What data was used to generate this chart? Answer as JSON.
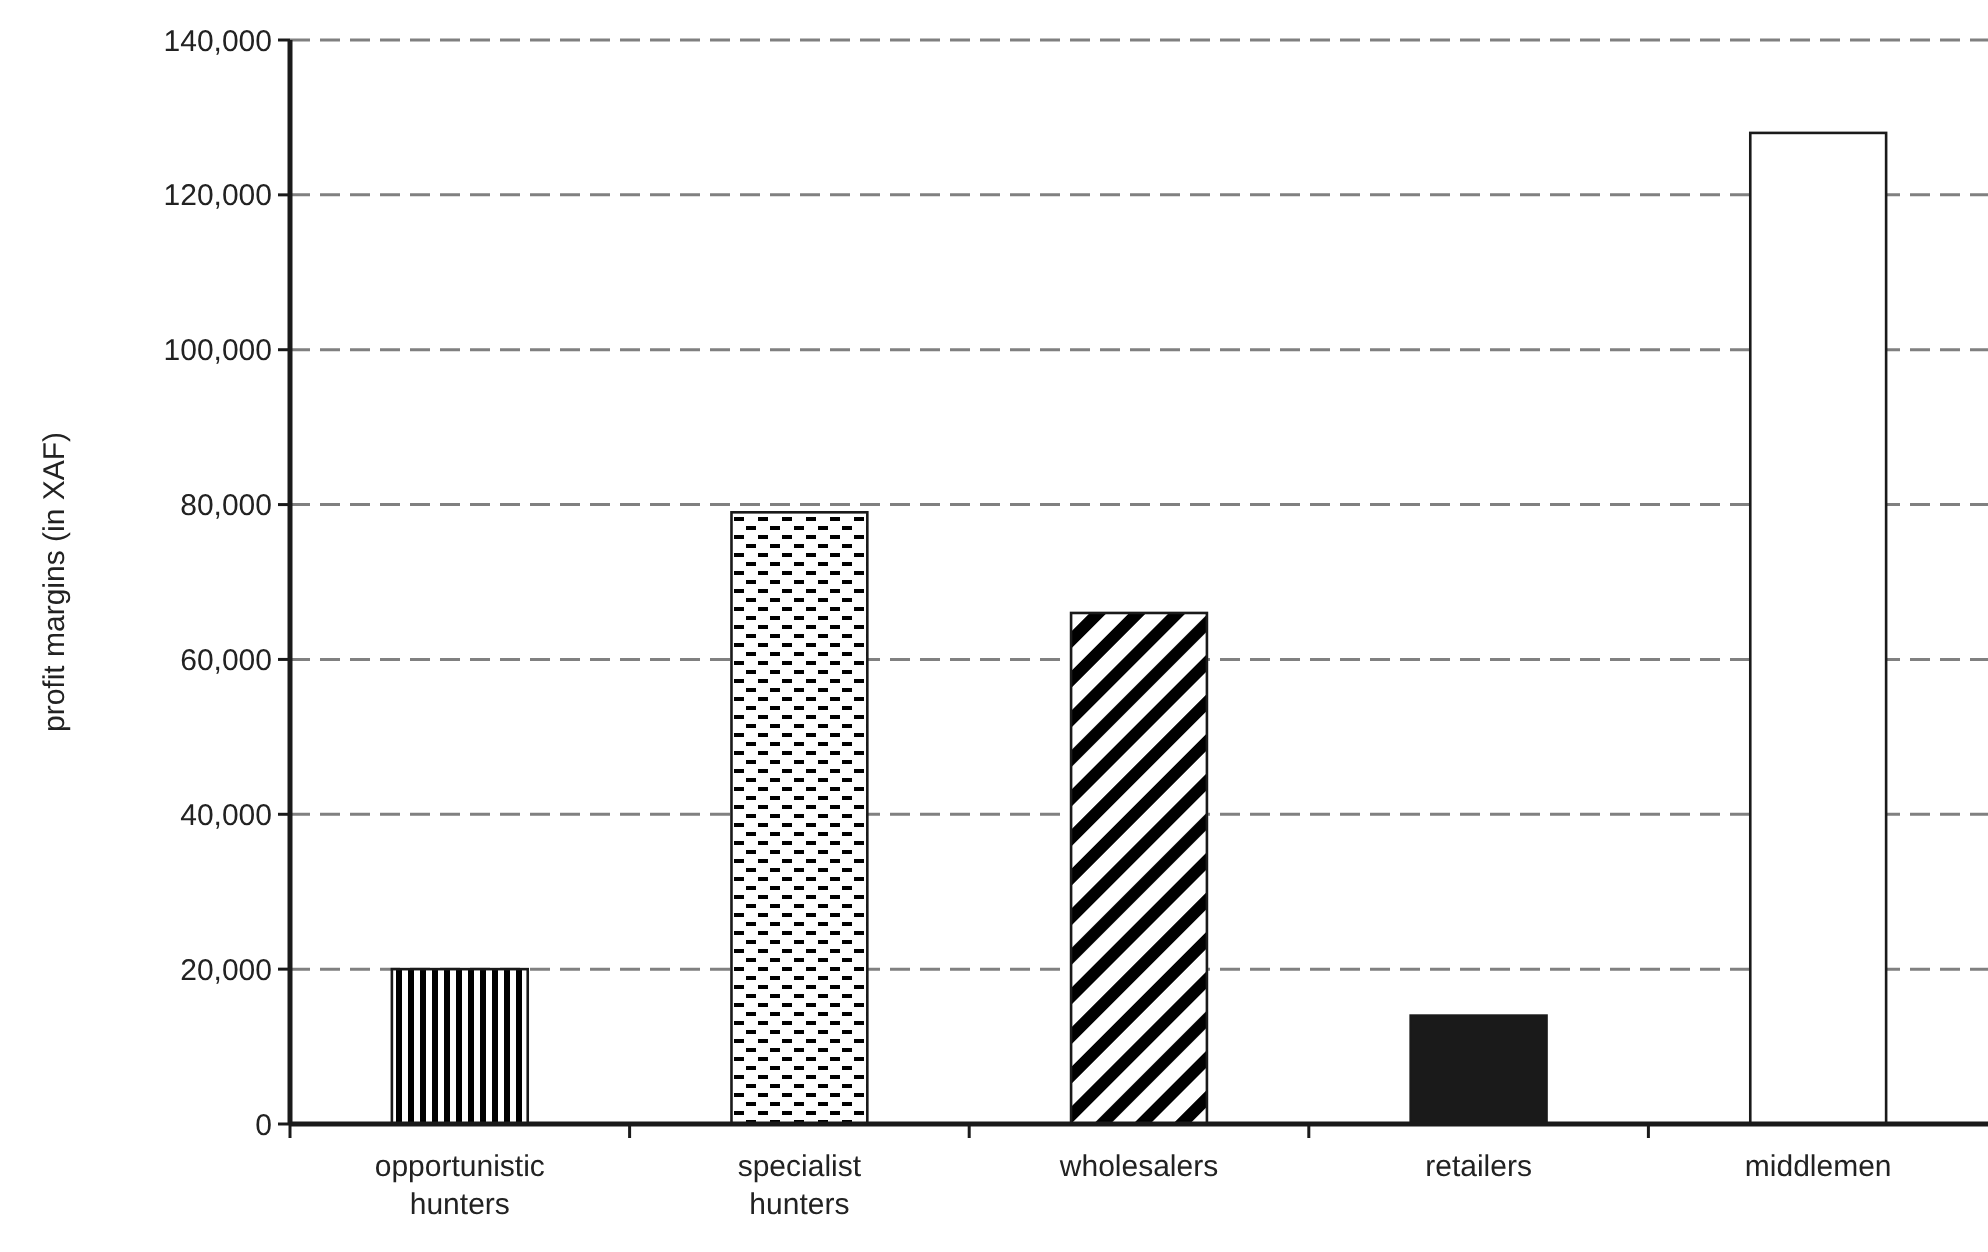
{
  "chart_data": {
    "type": "bar",
    "ylabel": "profit margins (in XAF)",
    "categories": [
      "opportunistic hunters",
      "specialist hunters",
      "wholesalers",
      "retailers",
      "middlemen"
    ],
    "values": [
      20000,
      79000,
      66000,
      14000,
      128000
    ],
    "colors": [
      "#1a1a1a",
      "#1a1a1a",
      "#1a1a1a",
      "#1a1a1a",
      "#ffffff"
    ],
    "ylim": [
      0,
      140000
    ],
    "yticks": [
      {
        "value": 0,
        "label": "0"
      },
      {
        "value": 20000,
        "label": "20,000"
      },
      {
        "value": 40000,
        "label": "40,000"
      },
      {
        "value": 60000,
        "label": "60,000"
      },
      {
        "value": 80000,
        "label": "80,000"
      },
      {
        "value": 100000,
        "label": "100,000"
      },
      {
        "value": 120000,
        "label": "120,000"
      },
      {
        "value": 140000,
        "label": "140,000"
      }
    ],
    "grid": "y"
  }
}
